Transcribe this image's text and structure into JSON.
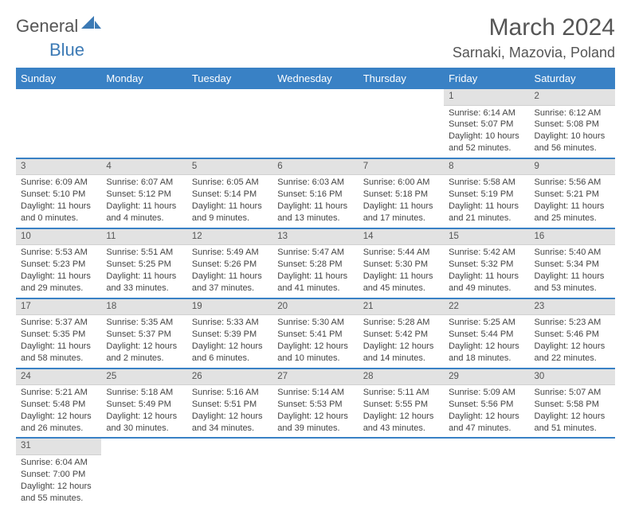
{
  "logo": {
    "word1": "General",
    "word2": "Blue"
  },
  "title": "March 2024",
  "location": "Sarnaki, Mazovia, Poland",
  "header_bg": "#3981c5",
  "header_text": "#ffffff",
  "accent_color": "#3981c5",
  "daynum_bg": "#e2e2e2",
  "days": [
    "Sunday",
    "Monday",
    "Tuesday",
    "Wednesday",
    "Thursday",
    "Friday",
    "Saturday"
  ],
  "weeks": [
    [
      null,
      null,
      null,
      null,
      null,
      {
        "n": "1",
        "sr": "Sunrise: 6:14 AM",
        "ss": "Sunset: 5:07 PM",
        "d1": "Daylight: 10 hours",
        "d2": "and 52 minutes."
      },
      {
        "n": "2",
        "sr": "Sunrise: 6:12 AM",
        "ss": "Sunset: 5:08 PM",
        "d1": "Daylight: 10 hours",
        "d2": "and 56 minutes."
      }
    ],
    [
      {
        "n": "3",
        "sr": "Sunrise: 6:09 AM",
        "ss": "Sunset: 5:10 PM",
        "d1": "Daylight: 11 hours",
        "d2": "and 0 minutes."
      },
      {
        "n": "4",
        "sr": "Sunrise: 6:07 AM",
        "ss": "Sunset: 5:12 PM",
        "d1": "Daylight: 11 hours",
        "d2": "and 4 minutes."
      },
      {
        "n": "5",
        "sr": "Sunrise: 6:05 AM",
        "ss": "Sunset: 5:14 PM",
        "d1": "Daylight: 11 hours",
        "d2": "and 9 minutes."
      },
      {
        "n": "6",
        "sr": "Sunrise: 6:03 AM",
        "ss": "Sunset: 5:16 PM",
        "d1": "Daylight: 11 hours",
        "d2": "and 13 minutes."
      },
      {
        "n": "7",
        "sr": "Sunrise: 6:00 AM",
        "ss": "Sunset: 5:18 PM",
        "d1": "Daylight: 11 hours",
        "d2": "and 17 minutes."
      },
      {
        "n": "8",
        "sr": "Sunrise: 5:58 AM",
        "ss": "Sunset: 5:19 PM",
        "d1": "Daylight: 11 hours",
        "d2": "and 21 minutes."
      },
      {
        "n": "9",
        "sr": "Sunrise: 5:56 AM",
        "ss": "Sunset: 5:21 PM",
        "d1": "Daylight: 11 hours",
        "d2": "and 25 minutes."
      }
    ],
    [
      {
        "n": "10",
        "sr": "Sunrise: 5:53 AM",
        "ss": "Sunset: 5:23 PM",
        "d1": "Daylight: 11 hours",
        "d2": "and 29 minutes."
      },
      {
        "n": "11",
        "sr": "Sunrise: 5:51 AM",
        "ss": "Sunset: 5:25 PM",
        "d1": "Daylight: 11 hours",
        "d2": "and 33 minutes."
      },
      {
        "n": "12",
        "sr": "Sunrise: 5:49 AM",
        "ss": "Sunset: 5:26 PM",
        "d1": "Daylight: 11 hours",
        "d2": "and 37 minutes."
      },
      {
        "n": "13",
        "sr": "Sunrise: 5:47 AM",
        "ss": "Sunset: 5:28 PM",
        "d1": "Daylight: 11 hours",
        "d2": "and 41 minutes."
      },
      {
        "n": "14",
        "sr": "Sunrise: 5:44 AM",
        "ss": "Sunset: 5:30 PM",
        "d1": "Daylight: 11 hours",
        "d2": "and 45 minutes."
      },
      {
        "n": "15",
        "sr": "Sunrise: 5:42 AM",
        "ss": "Sunset: 5:32 PM",
        "d1": "Daylight: 11 hours",
        "d2": "and 49 minutes."
      },
      {
        "n": "16",
        "sr": "Sunrise: 5:40 AM",
        "ss": "Sunset: 5:34 PM",
        "d1": "Daylight: 11 hours",
        "d2": "and 53 minutes."
      }
    ],
    [
      {
        "n": "17",
        "sr": "Sunrise: 5:37 AM",
        "ss": "Sunset: 5:35 PM",
        "d1": "Daylight: 11 hours",
        "d2": "and 58 minutes."
      },
      {
        "n": "18",
        "sr": "Sunrise: 5:35 AM",
        "ss": "Sunset: 5:37 PM",
        "d1": "Daylight: 12 hours",
        "d2": "and 2 minutes."
      },
      {
        "n": "19",
        "sr": "Sunrise: 5:33 AM",
        "ss": "Sunset: 5:39 PM",
        "d1": "Daylight: 12 hours",
        "d2": "and 6 minutes."
      },
      {
        "n": "20",
        "sr": "Sunrise: 5:30 AM",
        "ss": "Sunset: 5:41 PM",
        "d1": "Daylight: 12 hours",
        "d2": "and 10 minutes."
      },
      {
        "n": "21",
        "sr": "Sunrise: 5:28 AM",
        "ss": "Sunset: 5:42 PM",
        "d1": "Daylight: 12 hours",
        "d2": "and 14 minutes."
      },
      {
        "n": "22",
        "sr": "Sunrise: 5:25 AM",
        "ss": "Sunset: 5:44 PM",
        "d1": "Daylight: 12 hours",
        "d2": "and 18 minutes."
      },
      {
        "n": "23",
        "sr": "Sunrise: 5:23 AM",
        "ss": "Sunset: 5:46 PM",
        "d1": "Daylight: 12 hours",
        "d2": "and 22 minutes."
      }
    ],
    [
      {
        "n": "24",
        "sr": "Sunrise: 5:21 AM",
        "ss": "Sunset: 5:48 PM",
        "d1": "Daylight: 12 hours",
        "d2": "and 26 minutes."
      },
      {
        "n": "25",
        "sr": "Sunrise: 5:18 AM",
        "ss": "Sunset: 5:49 PM",
        "d1": "Daylight: 12 hours",
        "d2": "and 30 minutes."
      },
      {
        "n": "26",
        "sr": "Sunrise: 5:16 AM",
        "ss": "Sunset: 5:51 PM",
        "d1": "Daylight: 12 hours",
        "d2": "and 34 minutes."
      },
      {
        "n": "27",
        "sr": "Sunrise: 5:14 AM",
        "ss": "Sunset: 5:53 PM",
        "d1": "Daylight: 12 hours",
        "d2": "and 39 minutes."
      },
      {
        "n": "28",
        "sr": "Sunrise: 5:11 AM",
        "ss": "Sunset: 5:55 PM",
        "d1": "Daylight: 12 hours",
        "d2": "and 43 minutes."
      },
      {
        "n": "29",
        "sr": "Sunrise: 5:09 AM",
        "ss": "Sunset: 5:56 PM",
        "d1": "Daylight: 12 hours",
        "d2": "and 47 minutes."
      },
      {
        "n": "30",
        "sr": "Sunrise: 5:07 AM",
        "ss": "Sunset: 5:58 PM",
        "d1": "Daylight: 12 hours",
        "d2": "and 51 minutes."
      }
    ],
    [
      {
        "n": "31",
        "sr": "Sunrise: 6:04 AM",
        "ss": "Sunset: 7:00 PM",
        "d1": "Daylight: 12 hours",
        "d2": "and 55 minutes."
      },
      null,
      null,
      null,
      null,
      null,
      null
    ]
  ]
}
